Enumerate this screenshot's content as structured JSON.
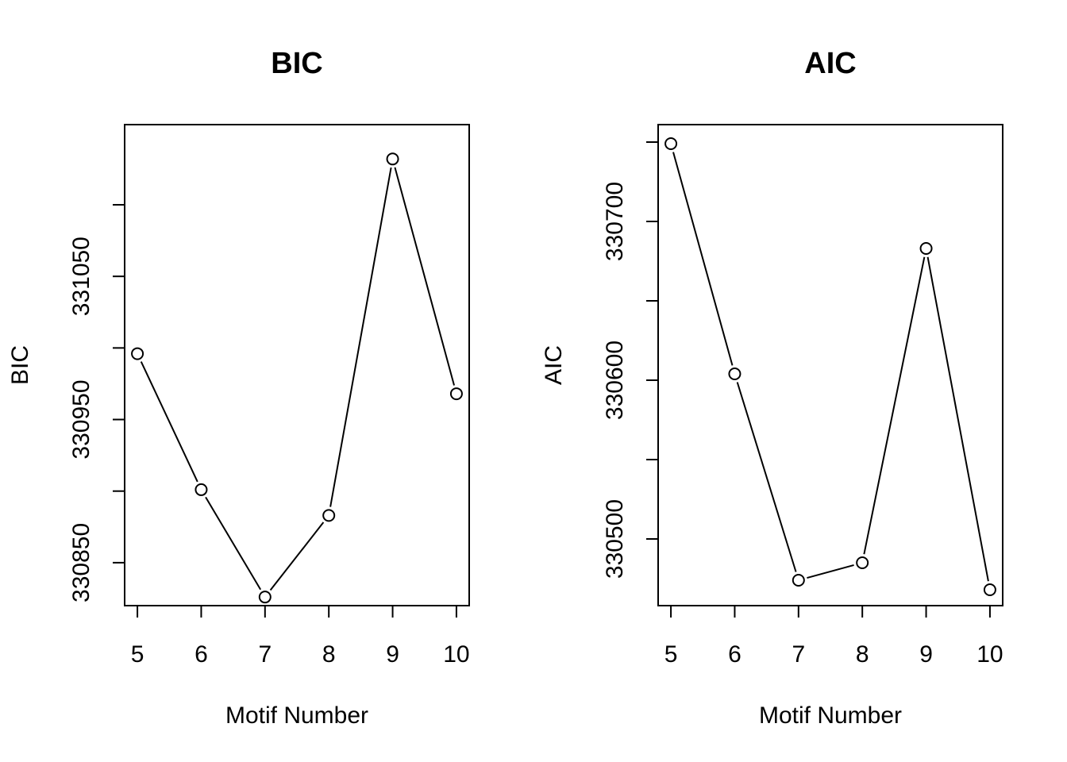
{
  "chart_data": [
    {
      "type": "line",
      "title": "BIC",
      "xlabel": "Motif Number",
      "ylabel": "BIC",
      "x": [
        5,
        6,
        7,
        8,
        9,
        10
      ],
      "values": [
        330996,
        330901,
        330826,
        330883,
        331132,
        330968
      ],
      "xlim": [
        4.8,
        10.2
      ],
      "ylim": [
        330820,
        331156
      ],
      "x_ticks": [
        5,
        6,
        7,
        8,
        9,
        10
      ],
      "y_ticks": [
        330850,
        330900,
        330950,
        331000,
        331050,
        331100
      ],
      "y_tick_labels": [
        "330850",
        "",
        "330950",
        "",
        "331050",
        ""
      ],
      "markers": "open-circle",
      "grid": false
    },
    {
      "type": "line",
      "title": "AIC",
      "xlabel": "Motif Number",
      "ylabel": "AIC",
      "x": [
        5,
        6,
        7,
        8,
        9,
        10
      ],
      "values": [
        330749,
        330604,
        330474,
        330485,
        330683,
        330468
      ],
      "xlim": [
        4.8,
        10.2
      ],
      "ylim": [
        330458,
        330761
      ],
      "x_ticks": [
        5,
        6,
        7,
        8,
        9,
        10
      ],
      "y_ticks": [
        330500,
        330550,
        330600,
        330650,
        330700,
        330750
      ],
      "y_tick_labels": [
        "330500",
        "",
        "330600",
        "",
        "330700",
        ""
      ],
      "markers": "open-circle",
      "grid": false
    }
  ]
}
